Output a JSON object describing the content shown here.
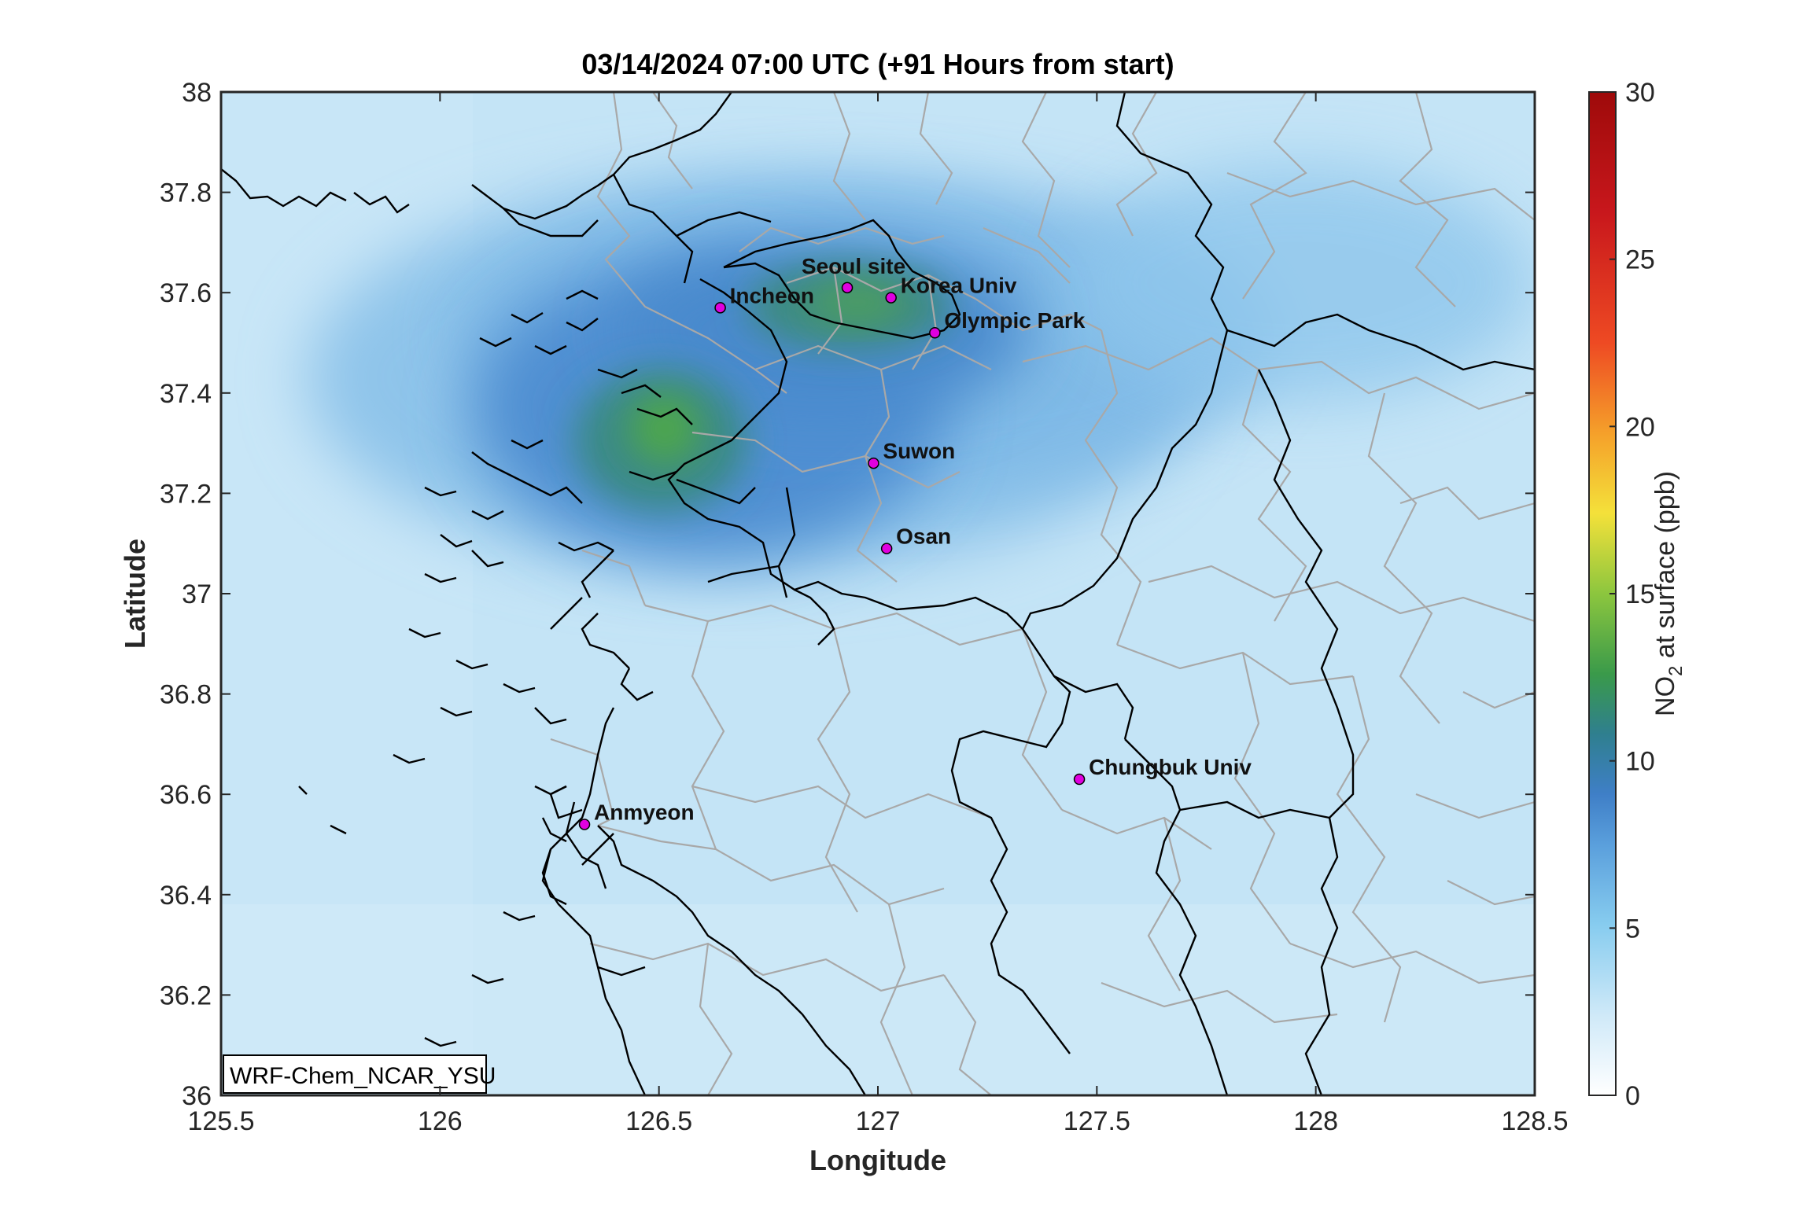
{
  "title": "03/14/2024 07:00 UTC (+91 Hours from start)",
  "map": {
    "xlabel": "Longitude",
    "ylabel": "Latitude",
    "lon_range": [
      125.5,
      128.5
    ],
    "lat_range": [
      36,
      38
    ],
    "lon_ticks": [
      "125.5",
      "126",
      "126.5",
      "127",
      "127.5",
      "128",
      "128.5"
    ],
    "lat_ticks": [
      "38",
      "37.8",
      "37.6",
      "37.4",
      "37.2",
      "37",
      "36.8",
      "36.6",
      "36.4",
      "36.2",
      "36"
    ],
    "model_tag": "WRF-Chem_NCAR_YSU",
    "sites": [
      {
        "name": "Seoul site",
        "lon": 126.93,
        "lat": 37.61
      },
      {
        "name": "Korea Univ",
        "lon": 127.03,
        "lat": 37.59
      },
      {
        "name": "Incheon",
        "lon": 126.64,
        "lat": 37.57
      },
      {
        "name": "Olympic Park",
        "lon": 127.13,
        "lat": 37.52
      },
      {
        "name": "Suwon",
        "lon": 126.99,
        "lat": 37.26
      },
      {
        "name": "Osan",
        "lon": 127.02,
        "lat": 37.09
      },
      {
        "name": "Chungbuk Univ",
        "lon": 127.46,
        "lat": 36.63
      },
      {
        "name": "Anmyeon",
        "lon": 126.33,
        "lat": 36.54
      }
    ],
    "site_marker_color": "#e000e0",
    "no2_hotspots": [
      {
        "lon": 126.5,
        "lat": 37.35,
        "ppb": 12
      },
      {
        "lon": 126.92,
        "lat": 37.57,
        "ppb": 11
      },
      {
        "lon": 126.75,
        "lat": 37.45,
        "ppb": 9
      }
    ]
  },
  "colorbar": {
    "label_main": "NO",
    "label_sub": "2",
    "label_rest": " at surface (ppb)",
    "range": [
      0,
      30
    ],
    "ticks": [
      "30",
      "25",
      "20",
      "15",
      "10",
      "5",
      "0"
    ],
    "colors": [
      "#ffffff",
      "#cfe9f8",
      "#87ccef",
      "#5a9fdc",
      "#3f7fc7",
      "#2f7f8f",
      "#3a9a4a",
      "#8cc63e",
      "#f4e13a",
      "#f5a02a",
      "#ee4a23",
      "#c8171c",
      "#9e0a0a"
    ]
  }
}
